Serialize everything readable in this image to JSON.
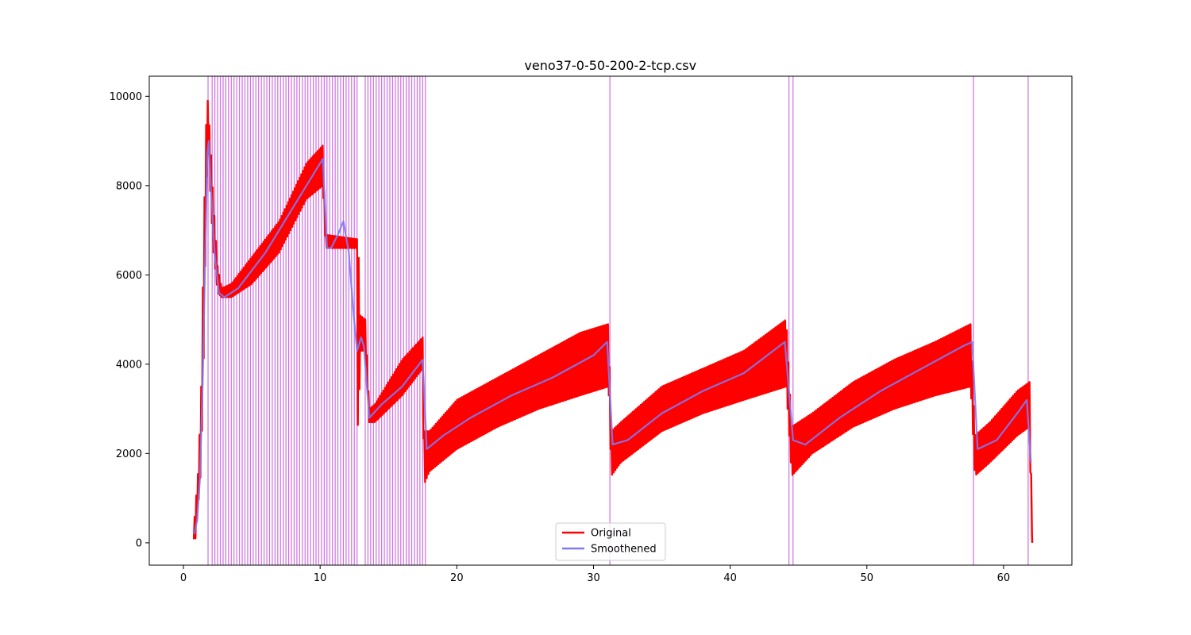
{
  "chart_data": {
    "type": "line",
    "title": "veno37-0-50-200-2-tcp.csv",
    "xlabel": "",
    "ylabel": "",
    "xlim": [
      -2.5,
      65
    ],
    "ylim": [
      -500,
      10450
    ],
    "xticks": [
      0,
      10,
      20,
      30,
      40,
      50,
      60
    ],
    "yticks": [
      0,
      2000,
      4000,
      6000,
      8000,
      10000
    ],
    "legend": {
      "placement": "lower-center",
      "entries": [
        "Original",
        "Smoothened"
      ]
    },
    "series": [
      {
        "name": "Original",
        "color": "#ff0000",
        "band_points": [
          [
            0.7,
            100,
            100
          ],
          [
            0.9,
            100,
            900
          ],
          [
            1.1,
            900,
            1700
          ],
          [
            1.3,
            1700,
            3500
          ],
          [
            1.5,
            4400,
            7200
          ],
          [
            1.7,
            8000,
            9900
          ],
          [
            1.8,
            9000,
            9900
          ],
          [
            2.0,
            7600,
            8800
          ],
          [
            2.2,
            6500,
            7600
          ],
          [
            2.5,
            5600,
            6200
          ],
          [
            2.8,
            5500,
            5700
          ],
          [
            3.5,
            5500,
            5800
          ],
          [
            5.0,
            5800,
            6400
          ],
          [
            7.0,
            6500,
            7200
          ],
          [
            9.0,
            7700,
            8500
          ],
          [
            10.2,
            8000,
            8900
          ],
          [
            10.4,
            6600,
            6900
          ],
          [
            12.7,
            6600,
            6800
          ],
          [
            12.8,
            0,
            6700
          ],
          [
            12.9,
            4300,
            5100
          ],
          [
            13.3,
            4300,
            5000
          ],
          [
            13.6,
            2700,
            3000
          ],
          [
            14.0,
            2700,
            3100
          ],
          [
            16.0,
            3300,
            4100
          ],
          [
            17.5,
            3900,
            4600
          ],
          [
            17.6,
            1300,
            2500
          ],
          [
            18.0,
            1600,
            2500
          ],
          [
            20.0,
            2100,
            3200
          ],
          [
            23.0,
            2600,
            3700
          ],
          [
            26.0,
            3000,
            4200
          ],
          [
            29.0,
            3300,
            4700
          ],
          [
            31.1,
            3500,
            4900
          ],
          [
            31.3,
            1500,
            2500
          ],
          [
            32.0,
            1800,
            2700
          ],
          [
            35.0,
            2500,
            3500
          ],
          [
            38.0,
            2900,
            3900
          ],
          [
            41.0,
            3200,
            4300
          ],
          [
            44.1,
            3500,
            5000
          ],
          [
            44.5,
            1500,
            2600
          ],
          [
            46.0,
            2000,
            2900
          ],
          [
            49.0,
            2600,
            3600
          ],
          [
            52.0,
            3000,
            4100
          ],
          [
            55.0,
            3300,
            4500
          ],
          [
            57.6,
            3500,
            4900
          ],
          [
            57.9,
            1500,
            2400
          ],
          [
            59.0,
            1800,
            2700
          ],
          [
            61.0,
            2400,
            3400
          ],
          [
            61.9,
            2600,
            3600
          ],
          [
            62.0,
            900,
            1700
          ],
          [
            62.1,
            0,
            900
          ]
        ]
      },
      {
        "name": "Smoothened",
        "color": "#7b7bf5",
        "points": [
          [
            0.8,
            200
          ],
          [
            1.0,
            500
          ],
          [
            1.2,
            1400
          ],
          [
            1.4,
            3500
          ],
          [
            1.6,
            6500
          ],
          [
            1.75,
            8700
          ],
          [
            1.85,
            9000
          ],
          [
            2.0,
            8000
          ],
          [
            2.3,
            6400
          ],
          [
            2.6,
            5600
          ],
          [
            3.0,
            5500
          ],
          [
            4.0,
            5700
          ],
          [
            6.0,
            6500
          ],
          [
            8.0,
            7500
          ],
          [
            10.2,
            8600
          ],
          [
            10.5,
            6600
          ],
          [
            10.8,
            6600
          ],
          [
            11.3,
            6900
          ],
          [
            11.7,
            7200
          ],
          [
            12.1,
            6500
          ],
          [
            12.4,
            5300
          ],
          [
            12.7,
            4300
          ],
          [
            13.0,
            4600
          ],
          [
            13.2,
            4400
          ],
          [
            13.6,
            2800
          ],
          [
            14.5,
            3100
          ],
          [
            16.0,
            3500
          ],
          [
            17.5,
            4100
          ],
          [
            17.8,
            2100
          ],
          [
            19.0,
            2400
          ],
          [
            21.0,
            2800
          ],
          [
            24.0,
            3300
          ],
          [
            27.0,
            3700
          ],
          [
            30.0,
            4200
          ],
          [
            31.0,
            4500
          ],
          [
            31.4,
            2200
          ],
          [
            32.5,
            2300
          ],
          [
            35.0,
            2900
          ],
          [
            38.0,
            3400
          ],
          [
            41.0,
            3800
          ],
          [
            44.0,
            4500
          ],
          [
            44.6,
            2300
          ],
          [
            45.5,
            2200
          ],
          [
            48.0,
            2800
          ],
          [
            51.0,
            3400
          ],
          [
            54.0,
            3900
          ],
          [
            57.0,
            4400
          ],
          [
            57.7,
            4500
          ],
          [
            58.1,
            2100
          ],
          [
            59.5,
            2300
          ],
          [
            61.0,
            2900
          ],
          [
            61.7,
            3200
          ],
          [
            62.0,
            1800
          ]
        ]
      }
    ],
    "vertical_lines": {
      "color": "#bf3fd8",
      "x": [
        1.8,
        2.1,
        2.3,
        2.5,
        2.7,
        2.9,
        3.1,
        3.3,
        3.5,
        3.7,
        3.9,
        4.1,
        4.3,
        4.5,
        4.7,
        4.9,
        5.1,
        5.3,
        5.5,
        5.7,
        5.9,
        6.1,
        6.3,
        6.5,
        6.7,
        6.9,
        7.1,
        7.3,
        7.5,
        7.7,
        7.9,
        8.1,
        8.3,
        8.5,
        8.7,
        8.9,
        9.1,
        9.3,
        9.5,
        9.7,
        9.9,
        10.1,
        10.3,
        10.5,
        10.7,
        10.9,
        11.1,
        11.3,
        11.5,
        11.7,
        11.9,
        12.1,
        12.3,
        12.5,
        12.7,
        13.3,
        13.5,
        13.7,
        13.9,
        14.1,
        14.3,
        14.5,
        14.7,
        14.9,
        15.1,
        15.3,
        15.5,
        15.7,
        15.9,
        16.1,
        16.3,
        16.5,
        16.7,
        16.9,
        17.1,
        17.3,
        17.5,
        17.7,
        31.2,
        44.3,
        44.6,
        57.8,
        61.8
      ]
    }
  }
}
